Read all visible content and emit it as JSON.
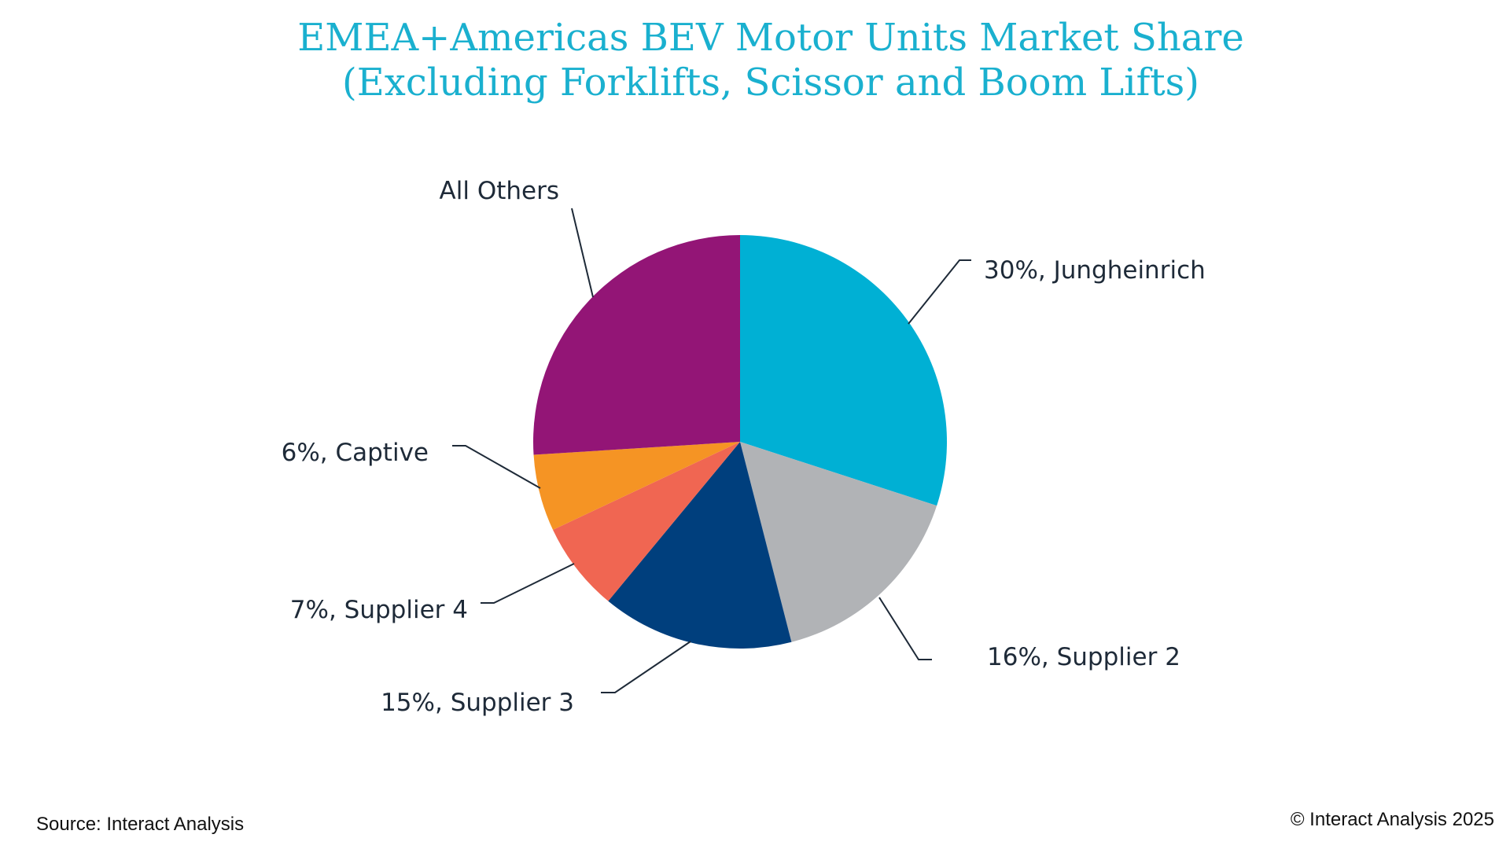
{
  "title": {
    "line1": "EMEA+Americas BEV Motor Units Market Share",
    "line2": "(Excluding Forklifts, Scissor and Boom Lifts)"
  },
  "chart_data": {
    "type": "pie",
    "title": "EMEA+Americas BEV Motor Units Market Share (Excluding Forklifts, Scissor and Boom Lifts)",
    "slices": [
      {
        "name": "Jungheinrich",
        "value": 30,
        "label": "30%, Jungheinrich",
        "color": "#00b0d4"
      },
      {
        "name": "Supplier 2",
        "value": 16,
        "label": "16%, Supplier 2",
        "color": "#b1b3b6"
      },
      {
        "name": "Supplier 3",
        "value": 15,
        "label": "15%, Supplier 3",
        "color": "#003f7d"
      },
      {
        "name": "Supplier 4",
        "value": 7,
        "label": "7%, Supplier 4",
        "color": "#f06652"
      },
      {
        "name": "Captive",
        "value": 6,
        "label": "6%, Captive",
        "color": "#f59424"
      },
      {
        "name": "All Others",
        "value": 26,
        "label": "All Others",
        "color": "#931576"
      }
    ]
  },
  "footer": {
    "source": "Source: Interact Analysis",
    "copyright": "© Interact Analysis 2025"
  }
}
